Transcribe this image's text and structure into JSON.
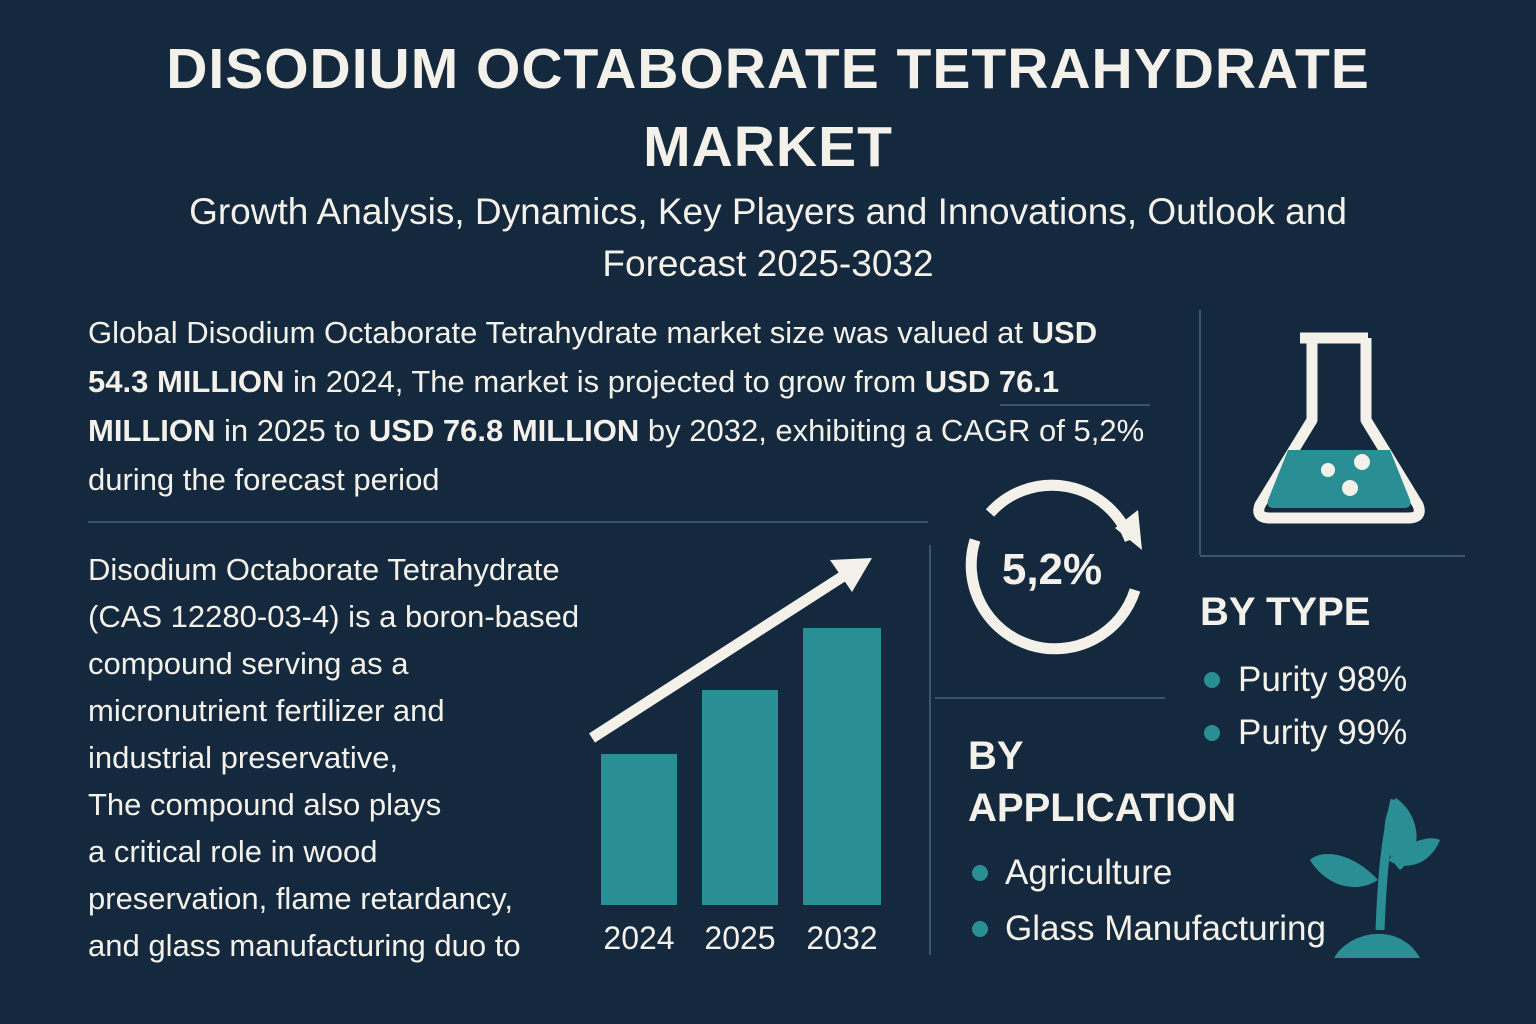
{
  "header": {
    "title": "DISODIUM OCTABORATE TETRAHYDRATE MARKET",
    "subtitle": "Growth Analysis, Dynamics, Key Players and Innovations, Outlook and Forecast 2025-3032"
  },
  "summary": [
    "Global Disodium Octaborate Tetrahydrate market size was valued at ",
    "USD 54.3 MILLION",
    " in 2024, The market is projected to grow from ",
    "USD 76.1 MILLION",
    " in 2025 to ",
    "USD 76.8 MILLION",
    " by 2032, exhibiting a CAGR of 5,2% during the forecast period"
  ],
  "description": {
    "lines": [
      "Disodium Octaborate Tetrahydrate",
      "(CAS 12280-03-4) is a boron-based",
      "compound serving as a",
      "micronutrient fertilizer and",
      "industrial preservative,",
      "The compound also plays",
      "a critical role in wood",
      "preservation, flame retardancy,",
      "and glass manufacturing duo to"
    ]
  },
  "growth_chart": {
    "categories": [
      "2024",
      "2025",
      "2032"
    ]
  },
  "cagr": "5,2%",
  "by_type": {
    "title": "BY TYPE",
    "items": [
      "Purity 98%",
      "Purity 99%"
    ]
  },
  "by_application": {
    "title": "BY APPLICATION",
    "items": [
      "Agriculture",
      "Glass Manufacturing"
    ]
  }
}
